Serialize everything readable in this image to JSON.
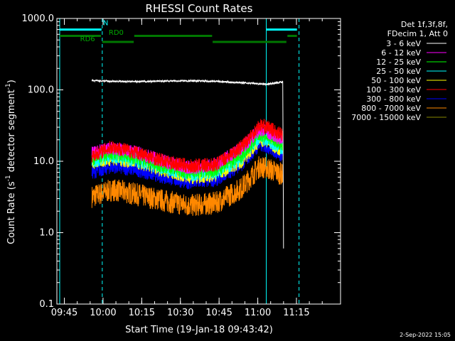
{
  "chart_data": {
    "type": "line",
    "title": "RHESSI Count Rates",
    "xlabel": "Start Time (19-Jan-18 09:43:42)",
    "ylabel_main": "Count Rate (s",
    "ylabel_sup": "-1",
    "ylabel_tail": " detector segment",
    "ylabel_sup2": "-1",
    "ylabel_close": ")",
    "x_unit": "minutes since 09:43:42",
    "xlim_labels": [
      "09:45",
      "10:00",
      "10:15",
      "10:30",
      "10:45",
      "11:00",
      "11:15"
    ],
    "x_ticks": [
      {
        "label": "09:45",
        "t": 1.3
      },
      {
        "label": "10:00",
        "t": 16.3
      },
      {
        "label": "10:15",
        "t": 31.3
      },
      {
        "label": "10:30",
        "t": 46.3
      },
      {
        "label": "10:45",
        "t": 61.3
      },
      {
        "label": "11:00",
        "t": 76.3
      },
      {
        "label": "11:15",
        "t": 91.3
      }
    ],
    "y_scale": "log",
    "ylim": [
      0.1,
      1000
    ],
    "y_ticks": [
      {
        "label": "1000.0",
        "v": 1000
      },
      {
        "label": "100.0",
        "v": 100
      },
      {
        "label": "10.0",
        "v": 10
      },
      {
        "label": "1.0",
        "v": 1
      },
      {
        "label": "0.1",
        "v": 0.1
      }
    ],
    "legend_header": [
      "Det 1f,3f,8f,",
      "FDecim 1, Att 0"
    ],
    "legend_position": "top-right",
    "series": [
      {
        "name": "3 - 6 keV",
        "color": "#ffffff",
        "t": [
          12,
          20,
          30,
          40,
          50,
          60,
          70,
          80,
          86,
          86.3
        ],
        "v": [
          135,
          132,
          130,
          133,
          134,
          132,
          126,
          120,
          130,
          0.6
        ]
      },
      {
        "name": "6 - 12 keV",
        "color": "#ff00ff",
        "t": [
          12,
          20,
          30,
          40,
          50,
          60,
          70,
          77,
          80,
          86
        ],
        "v": [
          13,
          15,
          13,
          10,
          8,
          9,
          15,
          28,
          26,
          20
        ]
      },
      {
        "name": "12 - 25 keV",
        "color": "#00ff00",
        "t": [
          12,
          20,
          30,
          40,
          50,
          60,
          70,
          77,
          80,
          86
        ],
        "v": [
          11,
          13,
          11,
          8.5,
          7,
          7.5,
          12,
          24,
          22,
          17
        ]
      },
      {
        "name": "25 - 50 keV",
        "color": "#00ffff",
        "t": [
          12,
          20,
          30,
          40,
          50,
          60,
          70,
          77,
          80,
          86
        ],
        "v": [
          10,
          12,
          10,
          8,
          6.5,
          7,
          11,
          22,
          20,
          15
        ]
      },
      {
        "name": "50 - 100 keV",
        "color": "#ffff00",
        "t": [
          12,
          20,
          30,
          40,
          50,
          60,
          70,
          77,
          80,
          86
        ],
        "v": [
          9.5,
          11,
          9.5,
          7.5,
          6,
          6.5,
          10,
          20,
          19,
          14
        ]
      },
      {
        "name": "100 - 300 keV",
        "color": "#ff0000",
        "t": [
          12,
          20,
          30,
          40,
          50,
          60,
          70,
          77,
          80,
          86
        ],
        "v": [
          12,
          16,
          13,
          10,
          8.5,
          9,
          16,
          32,
          30,
          23
        ]
      },
      {
        "name": "300 - 800 keV",
        "color": "#0000ff",
        "t": [
          12,
          20,
          30,
          40,
          50,
          60,
          70,
          77,
          80,
          86
        ],
        "v": [
          7,
          8.5,
          7.5,
          6,
          5,
          5.5,
          9,
          17,
          16,
          12
        ]
      },
      {
        "name": "800 - 7000 keV",
        "color": "#ff8800",
        "t": [
          12,
          20,
          30,
          40,
          50,
          60,
          70,
          77,
          80,
          86
        ],
        "v": [
          3.2,
          4,
          3.4,
          2.8,
          2.4,
          2.6,
          4.2,
          8.5,
          8,
          6.5
        ]
      },
      {
        "name": "7000 - 15000 keV",
        "color": "#888800",
        "t": [],
        "v": []
      }
    ],
    "vertical_lines": [
      {
        "t": -0.5,
        "style": "solid",
        "color": "#00ffff"
      },
      {
        "t": 16.0,
        "style": "dashed",
        "color": "#00ffff"
      },
      {
        "t": 79.6,
        "style": "solid",
        "color": "#00ffff"
      },
      {
        "t": 92.3,
        "style": "dashed",
        "color": "#00ffff"
      }
    ],
    "flag_bars": [
      {
        "name": "cyan-top",
        "color": "#00ffff",
        "segments": [
          [
            -0.5,
            15.7
          ],
          [
            79.6,
            91.5
          ]
        ],
        "v": 700
      },
      {
        "name": "green-rd0",
        "color": "#007700",
        "segments": [
          [
            -0.5,
            15.5
          ],
          [
            28.4,
            58.6
          ],
          [
            87.8,
            91.5
          ]
        ],
        "v": 570
      },
      {
        "name": "green-rd6",
        "color": "#007700",
        "segments": [
          [
            16,
            28.2
          ],
          [
            58.8,
            87.4
          ]
        ],
        "v": 470
      }
    ],
    "annotations": [
      {
        "text": "N",
        "color": "#00ffff",
        "t": 16.3,
        "v": 800
      },
      {
        "text": "RD0",
        "color": "#00aa00",
        "t": 18.5,
        "v": 590
      },
      {
        "text": "RD6",
        "color": "#00aa00",
        "t": 7.4,
        "v": 480
      }
    ]
  },
  "footer": {
    "date": "2-Sep-2022 15:05"
  }
}
